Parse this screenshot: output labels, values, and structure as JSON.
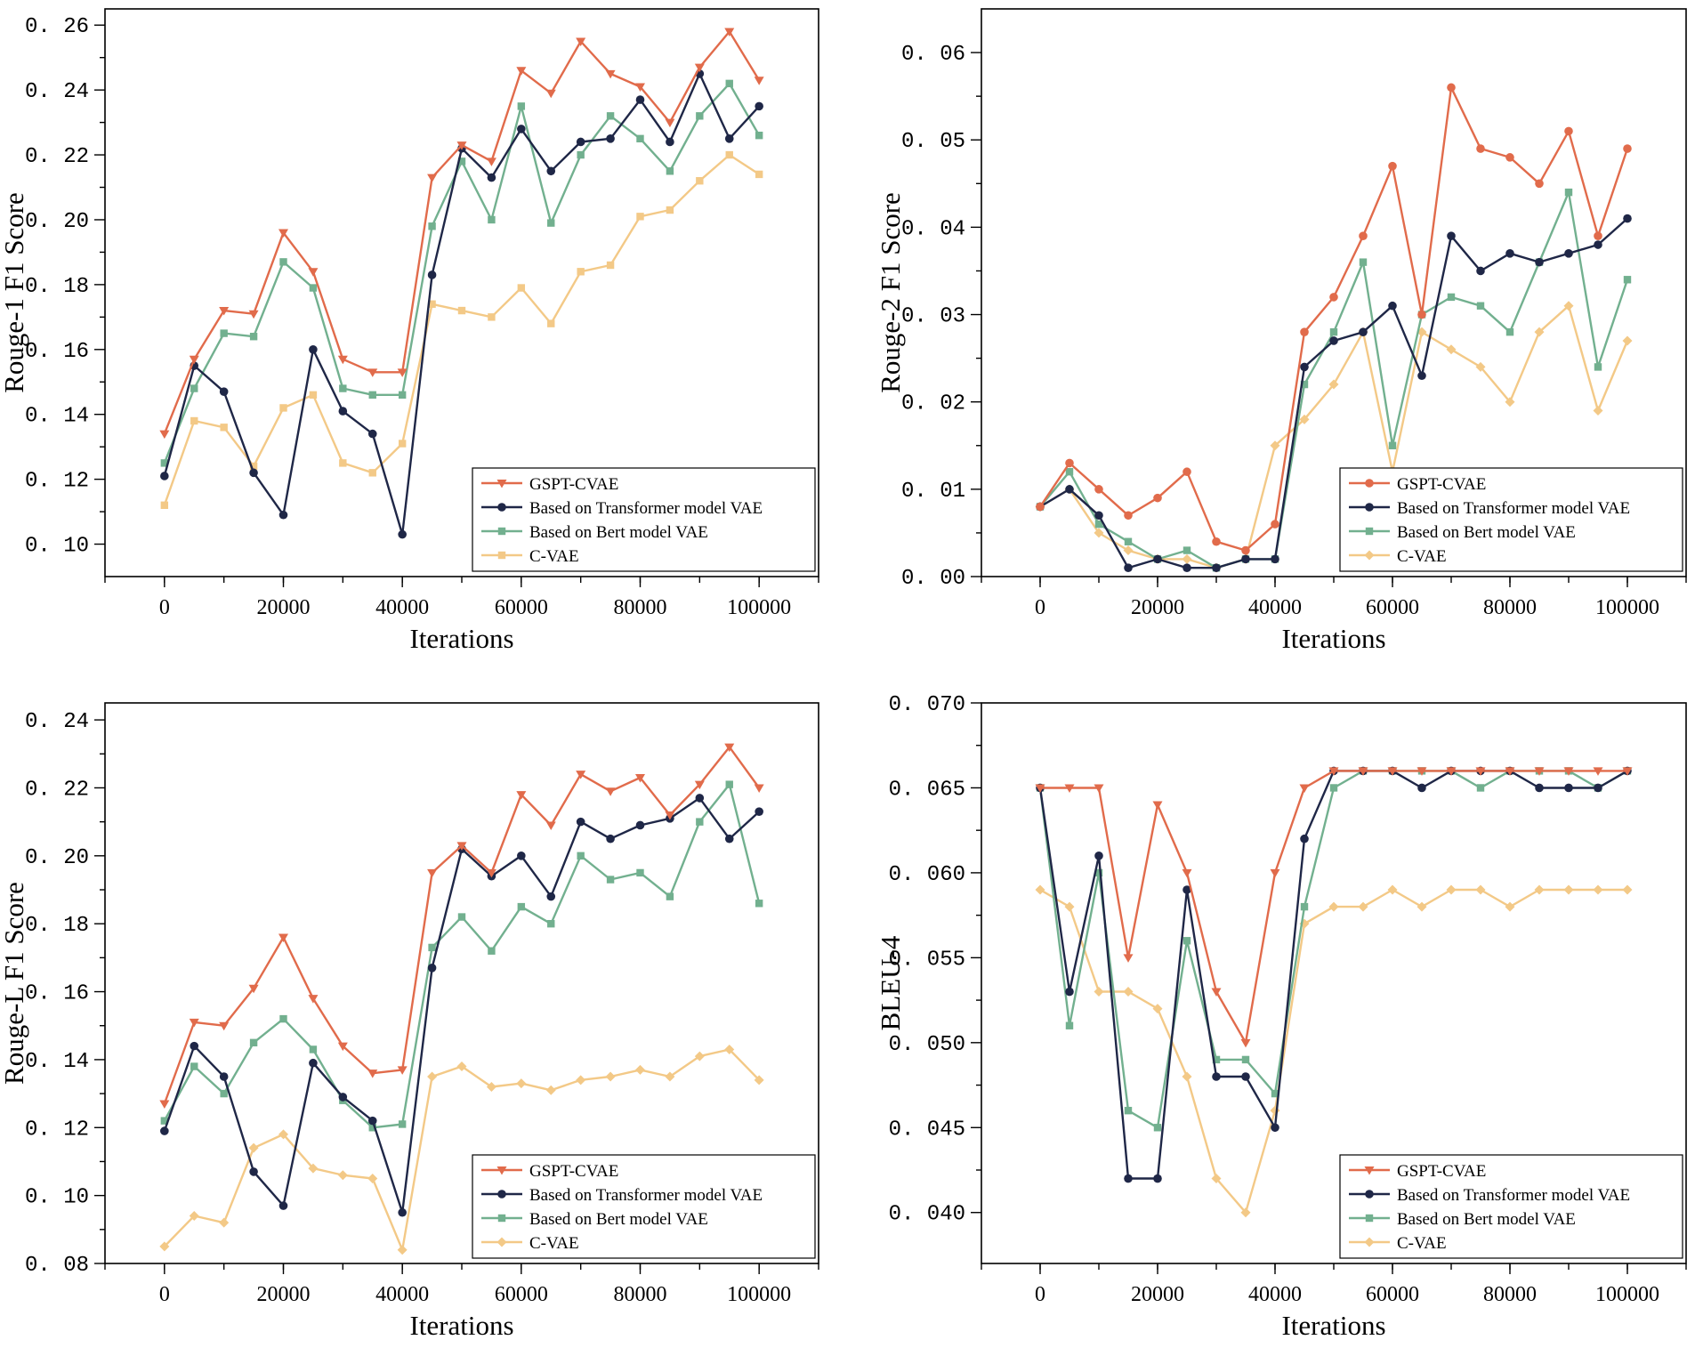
{
  "colors": {
    "gspt": "#e16b4b",
    "transformer": "#1f2747",
    "bert": "#72b08f",
    "cvae": "#f3c987"
  },
  "chart_data": [
    {
      "type": "line",
      "xlabel": "Iterations",
      "ylabel": "Rouge-1  F1 Score",
      "xlim": [
        -10000,
        110000
      ],
      "ylim": [
        0.09,
        0.265
      ],
      "x_ticks": [
        0,
        20000,
        40000,
        60000,
        80000,
        100000
      ],
      "x_minor_step": 10000,
      "y_ticks": [
        "0.10",
        "0.12",
        "0.14",
        "0.16",
        "0.18",
        "0.20",
        "0.22",
        "0.24",
        "0.26"
      ],
      "legend": "bottom-right",
      "x": [
        0,
        5000,
        10000,
        15000,
        20000,
        25000,
        30000,
        35000,
        40000,
        45000,
        50000,
        55000,
        60000,
        65000,
        70000,
        75000,
        80000,
        85000,
        90000,
        95000,
        100000
      ],
      "series": [
        {
          "name": "GSPT-CVAE",
          "color_key": "gspt",
          "marker": "triangle-down",
          "values": [
            0.134,
            0.157,
            0.172,
            0.171,
            0.196,
            0.184,
            0.157,
            0.153,
            0.153,
            0.213,
            0.223,
            0.218,
            0.246,
            0.239,
            0.255,
            0.245,
            0.241,
            0.23,
            0.247,
            0.258,
            0.243
          ]
        },
        {
          "name": "Based on Transformer model VAE",
          "color_key": "transformer",
          "marker": "circle",
          "values": [
            0.121,
            0.155,
            0.147,
            0.122,
            0.109,
            0.16,
            0.141,
            0.134,
            0.103,
            0.183,
            0.222,
            0.213,
            0.228,
            0.215,
            0.224,
            0.225,
            0.237,
            0.224,
            0.245,
            0.225,
            0.235
          ]
        },
        {
          "name": "Based on Bert model VAE",
          "color_key": "bert",
          "marker": "square",
          "values": [
            0.125,
            0.148,
            0.165,
            0.164,
            0.187,
            0.179,
            0.148,
            0.146,
            0.146,
            0.198,
            0.218,
            0.2,
            0.235,
            0.199,
            0.22,
            0.232,
            0.225,
            0.215,
            0.232,
            0.242,
            0.226
          ]
        },
        {
          "name": "C-VAE",
          "color_key": "cvae",
          "marker": "square",
          "values": [
            0.112,
            0.138,
            0.136,
            0.124,
            0.142,
            0.146,
            0.125,
            0.122,
            0.131,
            0.174,
            0.172,
            0.17,
            0.179,
            0.168,
            0.184,
            0.186,
            0.201,
            0.203,
            0.212,
            0.22,
            0.214
          ]
        }
      ]
    },
    {
      "type": "line",
      "xlabel": "Iterations",
      "ylabel": "Rouge-2  F1 Score",
      "xlim": [
        -10000,
        110000
      ],
      "ylim": [
        0.0,
        0.065
      ],
      "x_ticks": [
        0,
        20000,
        40000,
        60000,
        80000,
        100000
      ],
      "x_minor_step": 10000,
      "y_ticks": [
        "0.00",
        "0.01",
        "0.02",
        "0.03",
        "0.04",
        "0.05",
        "0.06"
      ],
      "legend": "bottom-right",
      "x": [
        0,
        5000,
        10000,
        15000,
        20000,
        25000,
        30000,
        35000,
        40000,
        45000,
        50000,
        55000,
        60000,
        65000,
        70000,
        75000,
        80000,
        85000,
        90000,
        95000,
        100000
      ],
      "series": [
        {
          "name": "GSPT-CVAE",
          "color_key": "gspt",
          "marker": "circle",
          "values": [
            0.008,
            0.013,
            0.01,
            0.007,
            0.009,
            0.012,
            0.004,
            0.003,
            0.006,
            0.028,
            0.032,
            0.039,
            0.047,
            0.03,
            0.056,
            0.049,
            0.048,
            0.045,
            0.051,
            0.039,
            0.049
          ]
        },
        {
          "name": "Based on Transformer model VAE",
          "color_key": "transformer",
          "marker": "circle",
          "values": [
            0.008,
            0.01,
            0.007,
            0.001,
            0.002,
            0.001,
            0.001,
            0.002,
            0.002,
            0.024,
            0.027,
            0.028,
            0.031,
            0.023,
            0.039,
            0.035,
            0.037,
            0.036,
            0.037,
            0.038,
            0.041
          ]
        },
        {
          "name": "Based on Bert model VAE",
          "color_key": "bert",
          "marker": "square",
          "values": [
            0.008,
            0.012,
            0.006,
            0.004,
            0.002,
            0.003,
            0.001,
            0.002,
            0.002,
            0.022,
            0.028,
            0.036,
            0.015,
            0.03,
            0.032,
            0.031,
            0.028,
            0.036,
            0.044,
            0.024,
            0.034
          ]
        },
        {
          "name": "C-VAE",
          "color_key": "cvae",
          "marker": "diamond",
          "values": [
            0.008,
            0.01,
            0.005,
            0.003,
            0.002,
            0.002,
            0.001,
            0.002,
            0.015,
            0.018,
            0.022,
            0.028,
            0.012,
            0.028,
            0.026,
            0.024,
            0.02,
            0.028,
            0.031,
            0.019,
            0.027
          ]
        }
      ]
    },
    {
      "type": "line",
      "xlabel": "Iterations",
      "ylabel": "Rouge-L  F1 Score",
      "xlim": [
        -10000,
        110000
      ],
      "ylim": [
        0.08,
        0.245
      ],
      "x_ticks": [
        0,
        20000,
        40000,
        60000,
        80000,
        100000
      ],
      "x_minor_step": 10000,
      "y_ticks": [
        "0.08",
        "0.10",
        "0.12",
        "0.14",
        "0.16",
        "0.18",
        "0.20",
        "0.22",
        "0.24"
      ],
      "legend": "bottom-right",
      "x": [
        0,
        5000,
        10000,
        15000,
        20000,
        25000,
        30000,
        35000,
        40000,
        45000,
        50000,
        55000,
        60000,
        65000,
        70000,
        75000,
        80000,
        85000,
        90000,
        95000,
        100000
      ],
      "series": [
        {
          "name": "GSPT-CVAE",
          "color_key": "gspt",
          "marker": "triangle-down",
          "values": [
            0.127,
            0.151,
            0.15,
            0.161,
            0.176,
            0.158,
            0.144,
            0.136,
            0.137,
            0.195,
            0.203,
            0.195,
            0.218,
            0.209,
            0.224,
            0.219,
            0.223,
            0.212,
            0.221,
            0.232,
            0.22
          ]
        },
        {
          "name": "Based on Transformer model VAE",
          "color_key": "transformer",
          "marker": "circle",
          "values": [
            0.119,
            0.144,
            0.135,
            0.107,
            0.097,
            0.139,
            0.129,
            0.122,
            0.095,
            0.167,
            0.202,
            0.194,
            0.2,
            0.188,
            0.21,
            0.205,
            0.209,
            0.211,
            0.217,
            0.205,
            0.213
          ]
        },
        {
          "name": "Based on Bert model VAE",
          "color_key": "bert",
          "marker": "square",
          "values": [
            0.122,
            0.138,
            0.13,
            0.145,
            0.152,
            0.143,
            0.128,
            0.12,
            0.121,
            0.173,
            0.182,
            0.172,
            0.185,
            0.18,
            0.2,
            0.193,
            0.195,
            0.188,
            0.21,
            0.221,
            0.186
          ]
        },
        {
          "name": "C-VAE",
          "color_key": "cvae",
          "marker": "diamond",
          "values": [
            0.085,
            0.094,
            0.092,
            0.114,
            0.118,
            0.108,
            0.106,
            0.105,
            0.084,
            0.135,
            0.138,
            0.132,
            0.133,
            0.131,
            0.134,
            0.135,
            0.137,
            0.135,
            0.141,
            0.143,
            0.134
          ]
        }
      ]
    },
    {
      "type": "line",
      "xlabel": "Iterations",
      "ylabel": "BLEU-4",
      "xlim": [
        -10000,
        110000
      ],
      "ylim": [
        0.037,
        0.07
      ],
      "x_ticks": [
        0,
        20000,
        40000,
        60000,
        80000,
        100000
      ],
      "x_minor_step": 10000,
      "y_ticks": [
        "0.040",
        "0.045",
        "0.050",
        "0.055",
        "0.060",
        "0.065",
        "0.070"
      ],
      "legend": "bottom-right",
      "x": [
        0,
        5000,
        10000,
        15000,
        20000,
        25000,
        30000,
        35000,
        40000,
        45000,
        50000,
        55000,
        60000,
        65000,
        70000,
        75000,
        80000,
        85000,
        90000,
        95000,
        100000
      ],
      "series": [
        {
          "name": "GSPT-CVAE",
          "color_key": "gspt",
          "marker": "triangle-down",
          "values": [
            0.065,
            0.065,
            0.065,
            0.055,
            0.064,
            0.06,
            0.053,
            0.05,
            0.06,
            0.065,
            0.066,
            0.066,
            0.066,
            0.066,
            0.066,
            0.066,
            0.066,
            0.066,
            0.066,
            0.066,
            0.066
          ]
        },
        {
          "name": "Based on Transformer model VAE",
          "color_key": "transformer",
          "marker": "circle",
          "values": [
            0.065,
            0.053,
            0.061,
            0.042,
            0.042,
            0.059,
            0.048,
            0.048,
            0.045,
            0.062,
            0.066,
            0.066,
            0.066,
            0.065,
            0.066,
            0.066,
            0.066,
            0.065,
            0.065,
            0.065,
            0.066
          ]
        },
        {
          "name": "Based on Bert model VAE",
          "color_key": "bert",
          "marker": "square",
          "values": [
            0.065,
            0.051,
            0.06,
            0.046,
            0.045,
            0.056,
            0.049,
            0.049,
            0.047,
            0.058,
            0.065,
            0.066,
            0.066,
            0.066,
            0.066,
            0.065,
            0.066,
            0.066,
            0.066,
            0.065,
            0.066
          ]
        },
        {
          "name": "C-VAE",
          "color_key": "cvae",
          "marker": "diamond",
          "values": [
            0.059,
            0.058,
            0.053,
            0.053,
            0.052,
            0.048,
            0.042,
            0.04,
            0.046,
            0.057,
            0.058,
            0.058,
            0.059,
            0.058,
            0.059,
            0.059,
            0.058,
            0.059,
            0.059,
            0.059,
            0.059
          ]
        }
      ]
    }
  ]
}
